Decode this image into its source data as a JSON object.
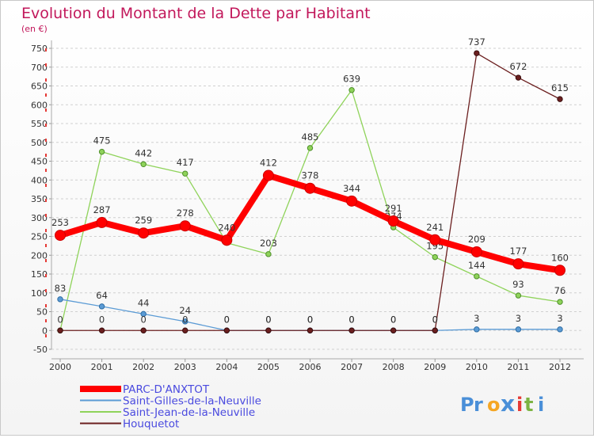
{
  "chart_data": {
    "type": "line",
    "title": "Evolution du Montant de la Dette par Habitant",
    "subtitle": "(en €)",
    "categories": [
      "2000",
      "2001",
      "2002",
      "2003",
      "2004",
      "2005",
      "2006",
      "2007",
      "2008",
      "2009",
      "2010",
      "2011",
      "2012"
    ],
    "ylim": [
      -50,
      750
    ],
    "yticks": [
      -50,
      0,
      50,
      100,
      150,
      200,
      250,
      300,
      350,
      400,
      450,
      500,
      550,
      600,
      650,
      700,
      750
    ],
    "grid": "horizontal dashed",
    "legend_position": "bottom-left",
    "series": [
      {
        "name": "PARC-D'ANXTOT",
        "color": "#ff0000",
        "values": [
          253,
          287,
          259,
          278,
          240,
          412,
          378,
          344,
          291,
          241,
          209,
          177,
          160
        ],
        "labels": [
          "253",
          "287",
          "259",
          "278",
          "240",
          "412",
          "378",
          "344",
          "291",
          "241",
          "209",
          "177",
          "160"
        ]
      },
      {
        "name": "Saint-Gilles-de-la-Neuville",
        "color": "#5b9bd5",
        "values": [
          83,
          64,
          44,
          24,
          0,
          0,
          0,
          0,
          0,
          0,
          3,
          3,
          3
        ],
        "labels": [
          "83",
          "64",
          "44",
          "24",
          "0",
          "0",
          "0",
          "0",
          "0",
          "0",
          "3",
          "3",
          "3"
        ]
      },
      {
        "name": "Saint-Jean-de-la-Neuville",
        "color": "#8fd35a",
        "values": [
          0,
          475,
          442,
          417,
          233,
          203,
          485,
          639,
          274,
          195,
          144,
          93,
          76
        ],
        "labels": [
          "",
          "475",
          "442",
          "417",
          "",
          "203",
          "485",
          "639",
          "274",
          "195",
          "144",
          "93",
          "76"
        ]
      },
      {
        "name": "Houquetot",
        "color": "#6b1f1f",
        "values": [
          0,
          0,
          0,
          0,
          0,
          0,
          0,
          0,
          0,
          0,
          737,
          672,
          615
        ],
        "labels": [
          "0",
          "0",
          "0",
          "0",
          "0",
          "0",
          "0",
          "0",
          "0",
          "0",
          "737",
          "672",
          "615"
        ]
      }
    ]
  },
  "brand": {
    "text": "Proxiti",
    "letters": [
      "P",
      "r",
      "o",
      "x",
      "i",
      "t",
      "i"
    ]
  }
}
